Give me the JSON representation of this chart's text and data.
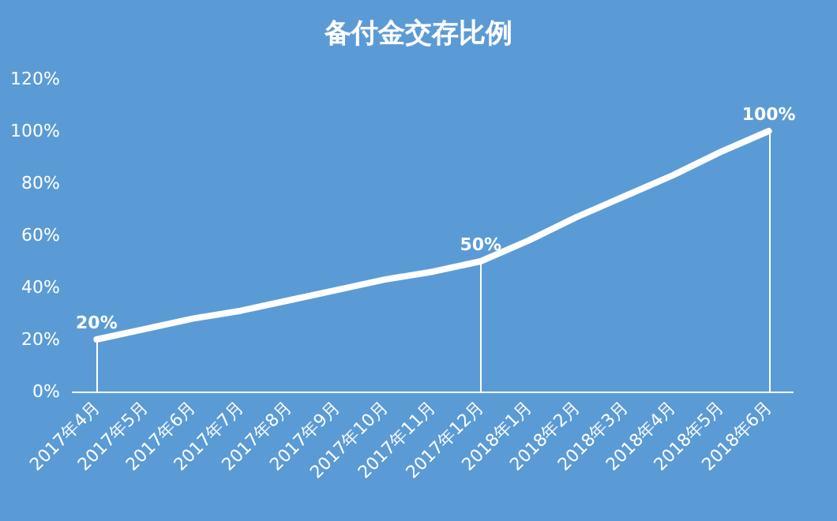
{
  "chart_data": {
    "type": "line",
    "title": "备付金交存比例",
    "categories": [
      "2017年4月",
      "2017年5月",
      "2017年6月",
      "2017年7月",
      "2017年8月",
      "2017年9月",
      "2017年10月",
      "2017年11月",
      "2017年12月",
      "2018年1月",
      "2018年2月",
      "2018年3月",
      "2018年4月",
      "2018年5月",
      "2018年6月"
    ],
    "series": [
      {
        "color": "#ffffff",
        "values": [
          20,
          24,
          28,
          31,
          35,
          39,
          43,
          46,
          50,
          58,
          67,
          75,
          83,
          92,
          100
        ],
        "value_labels": [
          "20%",
          null,
          null,
          null,
          null,
          null,
          null,
          null,
          "50%",
          null,
          null,
          null,
          null,
          null,
          "100%"
        ]
      }
    ],
    "ylim": [
      0,
      120
    ],
    "yticks": [
      {
        "value": 0,
        "label": "0%"
      },
      {
        "value": 20,
        "label": "20%"
      },
      {
        "value": 40,
        "label": "40%"
      },
      {
        "value": 60,
        "label": "60%"
      },
      {
        "value": 80,
        "label": "80%"
      },
      {
        "value": 100,
        "label": "100%"
      },
      {
        "value": 120,
        "label": "120%"
      }
    ],
    "marker": "none",
    "line_style": "solid"
  }
}
